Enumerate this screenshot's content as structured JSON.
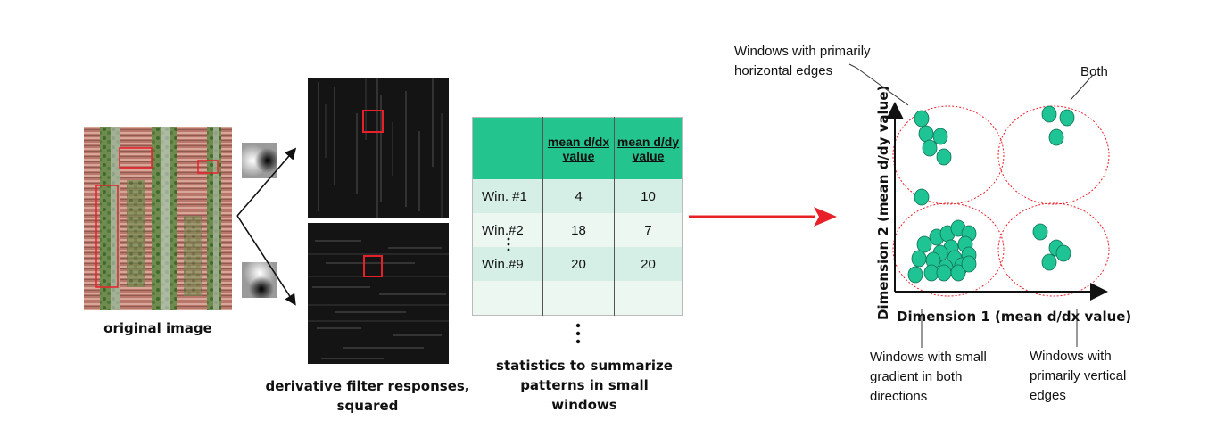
{
  "left": {
    "original_caption": "original image",
    "filter_caption": "derivative filter responses, squared"
  },
  "table": {
    "headers": [
      "",
      "mean d/dx value",
      "mean d/dy value"
    ],
    "rows": [
      {
        "label": "Win. #1",
        "dx": "4",
        "dy": "10"
      },
      {
        "label": "Win.#2",
        "dx": "18",
        "dy": "7"
      },
      {
        "label": "Win.#9",
        "dx": "20",
        "dy": "20"
      },
      {
        "label": "",
        "dx": "",
        "dy": ""
      }
    ],
    "caption": "statistics to summarize patterns in small windows"
  },
  "plot": {
    "xlabel": "Dimension 1 (mean d/dx value)",
    "ylabel": "Dimension 2 (mean d/dy value)",
    "annotations": {
      "horizontal": "Windows with primarily horizontal edges",
      "both": "Both",
      "small": "Windows with small gradient in both directions",
      "vertical": "Windows with primarily vertical edges"
    },
    "point_color": "#1fc495"
  },
  "colors": {
    "accent_red": "#e8202a",
    "table_header": "#23c48e"
  }
}
